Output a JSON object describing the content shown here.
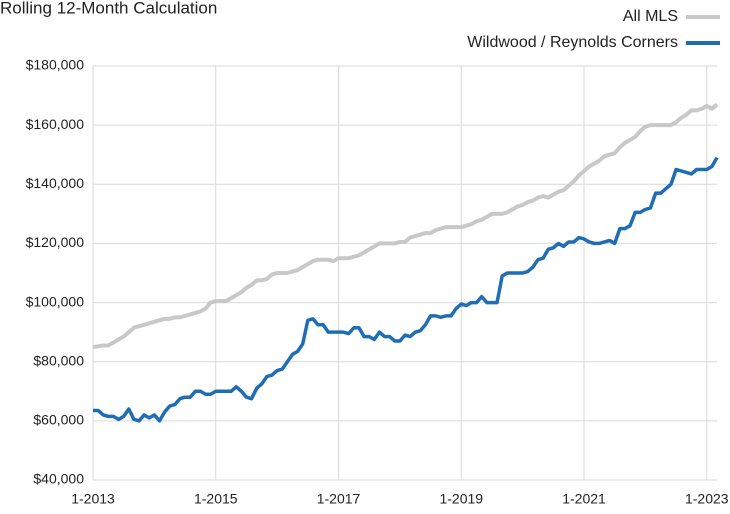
{
  "chart_data": {
    "type": "line",
    "title": "Rolling 12-Month Calculation",
    "categories": [
      "1-2013",
      null,
      null,
      null,
      null,
      null,
      null,
      null,
      null,
      null,
      null,
      null,
      null,
      null,
      null,
      null,
      null,
      null,
      null,
      null,
      null,
      null,
      null,
      null,
      "1-2015",
      null,
      null,
      null,
      null,
      null,
      null,
      null,
      null,
      null,
      null,
      null,
      null,
      null,
      null,
      null,
      null,
      null,
      null,
      null,
      null,
      null,
      null,
      null,
      "1-2017",
      null,
      null,
      null,
      null,
      null,
      null,
      null,
      null,
      null,
      null,
      null,
      null,
      null,
      null,
      null,
      null,
      null,
      null,
      null,
      null,
      null,
      null,
      null,
      "1-2019",
      null,
      null,
      null,
      null,
      null,
      null,
      null,
      null,
      null,
      null,
      null,
      null,
      null,
      null,
      null,
      null,
      null,
      null,
      null,
      null,
      null,
      null,
      null,
      "1-2021",
      null,
      null,
      null,
      null,
      null,
      null,
      null,
      null,
      null,
      null,
      null,
      null,
      null,
      null,
      null,
      null,
      null,
      null,
      null,
      null,
      null,
      null,
      null,
      "1-2023",
      null,
      null
    ],
    "series": [
      {
        "name": "All MLS",
        "color": "#c8c8c8",
        "values": [
          85000,
          85200,
          85500,
          85500,
          86500,
          87500,
          88500,
          90000,
          91500,
          92000,
          92500,
          93000,
          93500,
          94000,
          94500,
          94500,
          95000,
          95000,
          95500,
          96000,
          96500,
          97000,
          98000,
          100000,
          100500,
          100500,
          100500,
          101500,
          102500,
          103500,
          105000,
          106000,
          107500,
          107500,
          108000,
          109500,
          110000,
          110000,
          110000,
          110500,
          111000,
          112000,
          113000,
          114000,
          114500,
          114500,
          114500,
          114000,
          115000,
          115000,
          115000,
          115500,
          116000,
          117000,
          118000,
          119000,
          120000,
          120000,
          120000,
          120000,
          120500,
          120500,
          122000,
          122500,
          123000,
          123500,
          123500,
          124500,
          125000,
          125500,
          125500,
          125500,
          125500,
          126000,
          126500,
          127500,
          128000,
          129000,
          130000,
          130000,
          130000,
          130500,
          131500,
          132500,
          133000,
          134000,
          134500,
          135500,
          136000,
          135500,
          136500,
          137500,
          138000,
          139500,
          141000,
          143000,
          144500,
          146000,
          147000,
          148000,
          149500,
          150000,
          150500,
          152500,
          154000,
          155000,
          156000,
          158000,
          159500,
          160000,
          160000,
          160000,
          160000,
          160000,
          161000,
          162500,
          163500,
          165000,
          165000,
          165500,
          166500,
          165500,
          167000
        ]
      },
      {
        "name": "Wildwood / Reynolds Corners",
        "color": "#1f6db5",
        "values": [
          63500,
          63500,
          62000,
          61500,
          61500,
          60500,
          61500,
          64000,
          60500,
          60000,
          62000,
          61000,
          62000,
          60000,
          63000,
          65000,
          65500,
          67500,
          68000,
          68000,
          70000,
          70000,
          69000,
          69000,
          70000,
          70000,
          70000,
          70000,
          71500,
          70000,
          68000,
          67500,
          71000,
          72500,
          75000,
          75500,
          77000,
          77500,
          80000,
          82500,
          83500,
          86000,
          94000,
          94500,
          92500,
          92500,
          90000,
          90000,
          90000,
          90000,
          89500,
          91500,
          91500,
          88500,
          88500,
          87500,
          90000,
          88500,
          88500,
          87000,
          87000,
          89000,
          88500,
          90000,
          90500,
          92500,
          95500,
          95500,
          95000,
          95500,
          95500,
          98000,
          99500,
          99000,
          100000,
          100000,
          102000,
          100000,
          100000,
          100000,
          109000,
          110000,
          110000,
          110000,
          110000,
          110500,
          112000,
          114500,
          115000,
          118000,
          118500,
          120000,
          119000,
          120500,
          120500,
          122000,
          121500,
          120500,
          120000,
          120000,
          120500,
          121000,
          120000,
          125000,
          125000,
          126000,
          130500,
          130500,
          131500,
          132000,
          137000,
          137000,
          138500,
          140000,
          145000,
          144500,
          144000,
          143500,
          145000,
          145000,
          145000,
          146000,
          149000
        ]
      }
    ],
    "ylim": [
      40000,
      180000
    ],
    "yticks": [
      {
        "value": 40000,
        "label": "$40,000"
      },
      {
        "value": 60000,
        "label": "$60,000"
      },
      {
        "value": 80000,
        "label": "$80,000"
      },
      {
        "value": 100000,
        "label": "$100,000"
      },
      {
        "value": 120000,
        "label": "$120,000"
      },
      {
        "value": 140000,
        "label": "$140,000"
      },
      {
        "value": 160000,
        "label": "$160,000"
      },
      {
        "value": 180000,
        "label": "$180,000"
      }
    ],
    "grid": true,
    "legend": "top-right"
  }
}
